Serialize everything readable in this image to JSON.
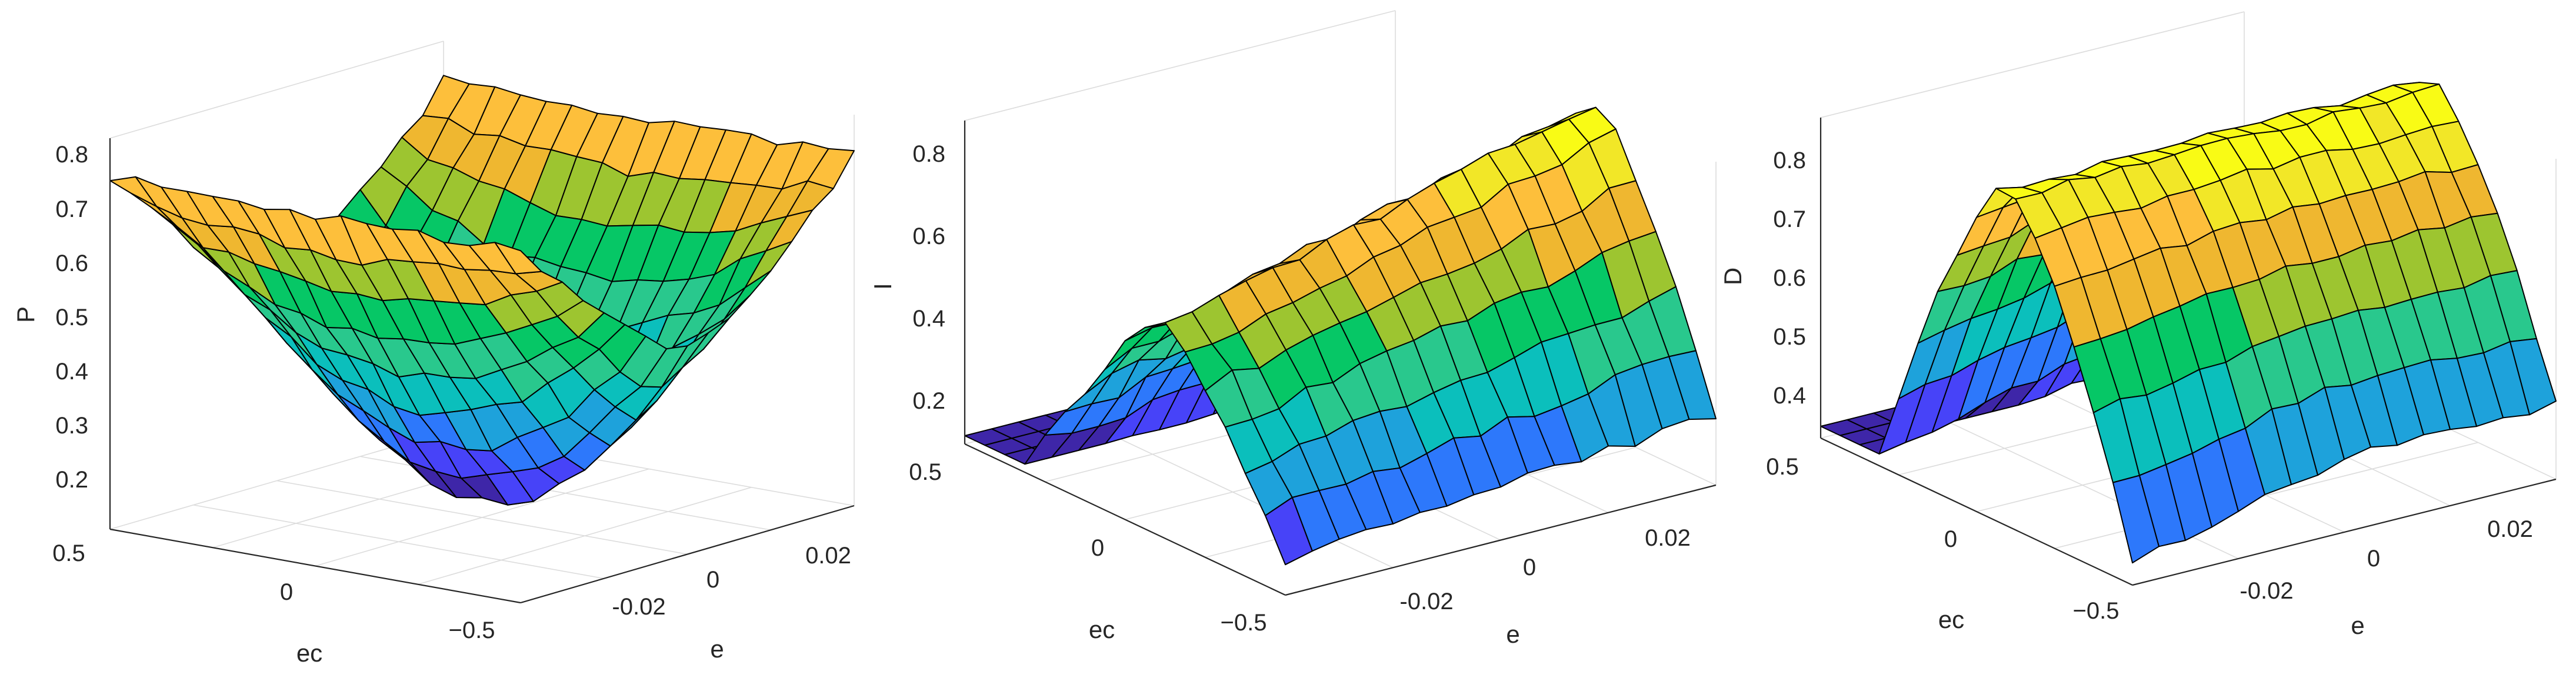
{
  "chart_data": [
    {
      "type": "surface",
      "shape": "valley",
      "zlabel": "P",
      "xlabel": "e",
      "ylabel": "ec",
      "x_ticks": [
        "-0.02",
        "0",
        "0.02"
      ],
      "y_ticks": [
        "0.5",
        "0",
        "−0.5"
      ],
      "z_ticks": [
        "0.2",
        "0.3",
        "0.4",
        "0.5",
        "0.6",
        "0.7",
        "0.8"
      ],
      "xlim": [
        -0.03,
        0.03
      ],
      "ylim": [
        -0.5,
        0.5
      ],
      "zlim": [
        0.1,
        0.9
      ],
      "zrange": [
        0.15,
        0.95
      ],
      "grid": true,
      "colormap": "parula"
    },
    {
      "type": "surface",
      "shape": "ridge",
      "zlabel": "I",
      "xlabel": "e",
      "ylabel": "ec",
      "x_ticks": [
        "-0.02",
        "0",
        "0.02"
      ],
      "y_ticks": [
        "0.5",
        "0",
        "−0.5"
      ],
      "z_ticks": [
        "0.2",
        "0.4",
        "0.6",
        "0.8"
      ],
      "xlim": [
        -0.03,
        0.03
      ],
      "ylim": [
        -0.5,
        0.5
      ],
      "zlim": [
        0.1,
        0.9
      ],
      "zrange": [
        0.1,
        0.9
      ],
      "grid": true,
      "colormap": "parula"
    },
    {
      "type": "surface",
      "shape": "plateau",
      "zlabel": "D",
      "xlabel": "e",
      "ylabel": "ec",
      "x_ticks": [
        "-0.02",
        "0",
        "0.02"
      ],
      "y_ticks": [
        "0.5",
        "0",
        "−0.5"
      ],
      "z_ticks": [
        "0.4",
        "0.5",
        "0.6",
        "0.7",
        "0.8"
      ],
      "xlim": [
        -0.03,
        0.03
      ],
      "ylim": [
        -0.5,
        0.5
      ],
      "zlim": [
        0.3,
        0.9
      ],
      "zrange": [
        0.3,
        0.9
      ],
      "grid": true,
      "colormap": "parula"
    }
  ]
}
